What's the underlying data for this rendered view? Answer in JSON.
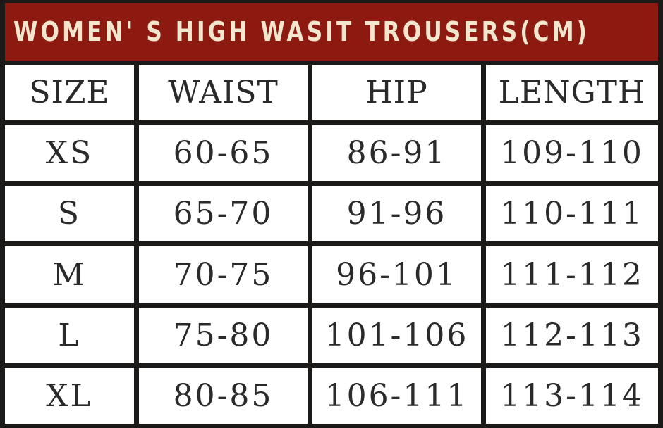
{
  "title": "WOMEN' S HIGH WASIT TROUSERS(CM)",
  "colors": {
    "header_bg": "#8c1a10",
    "header_text": "#f3e6cf",
    "border": "#1c1a18"
  },
  "columns": [
    "SIZE",
    "WAIST",
    "HIP",
    "LENGTH"
  ],
  "rows": [
    [
      "XS",
      "60-65",
      "86-91",
      "109-110"
    ],
    [
      "S",
      "65-70",
      "91-96",
      "110-111"
    ],
    [
      "M",
      "70-75",
      "96-101",
      "111-112"
    ],
    [
      "L",
      "75-80",
      "101-106",
      "112-113"
    ],
    [
      "XL",
      "80-85",
      "106-111",
      "113-114"
    ]
  ]
}
